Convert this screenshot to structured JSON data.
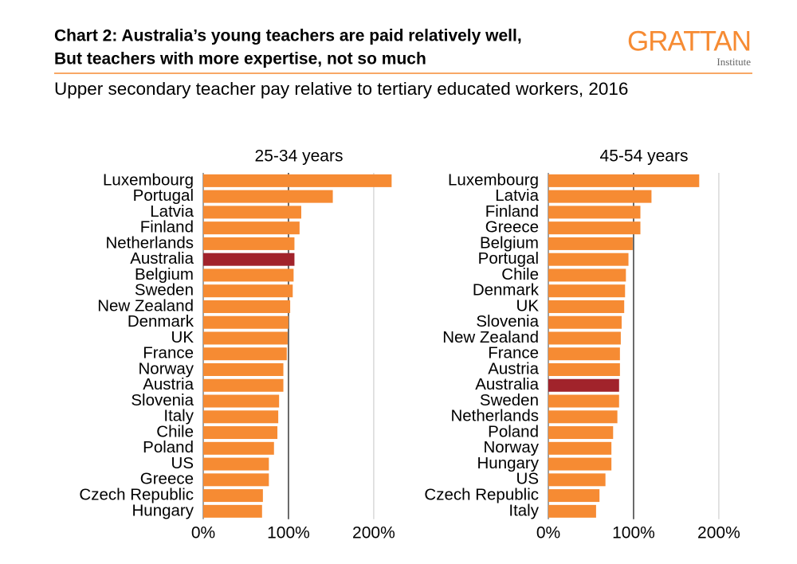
{
  "header": {
    "title_lines": [
      "Chart 2: Australia’s young teachers are paid relatively well,",
      "But teachers with more expertise, not so much"
    ],
    "logo": "GRATTAN",
    "logo_sub": "Institute",
    "subtitle": "Upper secondary teacher pay relative to tertiary educated workers, 2016"
  },
  "chart_data": [
    {
      "type": "hbar",
      "title": "25-34 years",
      "categories": [
        "Luxembourg",
        "Portugal",
        "Latvia",
        "Finland",
        "Netherlands",
        "Australia",
        "Belgium",
        "Sweden",
        "New Zealand",
        "Denmark",
        "UK",
        "France",
        "Norway",
        "Austria",
        "Slovenia",
        "Italy",
        "Chile",
        "Poland",
        "US",
        "Greece",
        "Czech Republic",
        "Hungary"
      ],
      "values": [
        221,
        152,
        115,
        113,
        107,
        107,
        106,
        105,
        102,
        100,
        99,
        98,
        94,
        94,
        89,
        88,
        87,
        83,
        77,
        77,
        70,
        69
      ],
      "colors": [
        "#f68b33",
        "#f68b33",
        "#f68b33",
        "#f68b33",
        "#f68b33",
        "#a1232b",
        "#f68b33",
        "#f68b33",
        "#f68b33",
        "#f68b33",
        "#f68b33",
        "#f68b33",
        "#f68b33",
        "#f68b33",
        "#f68b33",
        "#f68b33",
        "#f68b33",
        "#f68b33",
        "#f68b33",
        "#f68b33",
        "#f68b33",
        "#f68b33"
      ],
      "xlim": [
        0,
        230
      ],
      "xticks": [
        {
          "value": 0,
          "label": "0%"
        },
        {
          "value": 100,
          "label": "100%"
        },
        {
          "value": 200,
          "label": "200%"
        }
      ],
      "grid": true,
      "reference_line": 100
    },
    {
      "type": "hbar",
      "title": "45-54 years",
      "categories": [
        "Luxembourg",
        "Latvia",
        "Finland",
        "Greece",
        "Belgium",
        "Portugal",
        "Chile",
        "Denmark",
        "UK",
        "Slovenia",
        "New Zealand",
        "France",
        "Austria",
        "Australia",
        "Sweden",
        "Netherlands",
        "Poland",
        "Norway",
        "Hungary",
        "US",
        "Czech Republic",
        "Italy"
      ],
      "values": [
        177,
        121,
        108,
        108,
        99,
        94,
        91,
        90,
        89,
        86,
        85,
        84,
        84,
        83,
        83,
        81,
        76,
        74,
        74,
        67,
        60,
        56
      ],
      "colors": [
        "#f68b33",
        "#f68b33",
        "#f68b33",
        "#f68b33",
        "#f68b33",
        "#f68b33",
        "#f68b33",
        "#f68b33",
        "#f68b33",
        "#f68b33",
        "#f68b33",
        "#f68b33",
        "#f68b33",
        "#a1232b",
        "#f68b33",
        "#f68b33",
        "#f68b33",
        "#f68b33",
        "#f68b33",
        "#f68b33",
        "#f68b33",
        "#f68b33"
      ],
      "xlim": [
        0,
        230
      ],
      "xticks": [
        {
          "value": 0,
          "label": "0%"
        },
        {
          "value": 100,
          "label": "100%"
        },
        {
          "value": 200,
          "label": "200%"
        }
      ],
      "grid": true,
      "reference_line": 100
    }
  ]
}
